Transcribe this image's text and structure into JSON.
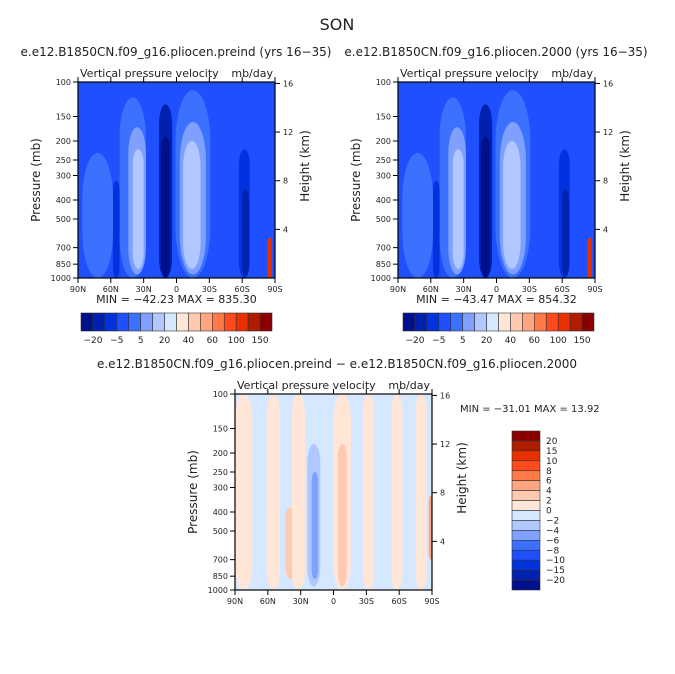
{
  "title": "SON",
  "palette": [
    "#000f8a",
    "#0021b0",
    "#0033dd",
    "#1e50ff",
    "#3c70ff",
    "#7fa0ff",
    "#b0c8ff",
    "#d6e8ff",
    "#ffe6d6",
    "#ffc8b0",
    "#ffa680",
    "#ff7a48",
    "#ff4a1e",
    "#e83000",
    "#b01c00",
    "#8a0000"
  ],
  "chart_data": [
    {
      "type": "heatmap",
      "title": "e.e12.B1850CN.f09_g16.pliocen.preind (yrs 16−35)",
      "subtitle_left": "Vertical pressure velocity",
      "subtitle_right": "mb/day",
      "ylabel": "Pressure (mb)",
      "ylabel_right": "Height (km)",
      "xticks": [
        "90N",
        "60N",
        "30N",
        "0",
        "30S",
        "60S",
        "90S"
      ],
      "yticks": [
        100,
        150,
        200,
        250,
        300,
        400,
        500,
        700,
        850,
        1000
      ],
      "yticks_right": [
        4,
        8,
        12,
        16
      ],
      "xlim": [
        90,
        -90
      ],
      "ylim": [
        1000,
        100
      ],
      "yscale": "log",
      "minmax": "MIN = −42.23   MAX = 835.30",
      "colorbar_labels": [
        "−20",
        "−5",
        "5",
        "20",
        "40",
        "60",
        "100",
        "150"
      ],
      "background_level": 3,
      "features": [
        {
          "lat": 72,
          "hw": 14,
          "ptop": 230,
          "pbot": 1000,
          "level": 4
        },
        {
          "lat": 40,
          "hw": 12,
          "ptop": 120,
          "pbot": 1000,
          "level": 4
        },
        {
          "lat": 36,
          "hw": 8,
          "ptop": 170,
          "pbot": 960,
          "level": 5
        },
        {
          "lat": 35,
          "hw": 5,
          "ptop": 220,
          "pbot": 900,
          "level": 6
        },
        {
          "lat": -15,
          "hw": 16,
          "ptop": 110,
          "pbot": 1000,
          "level": 4
        },
        {
          "lat": -15,
          "hw": 12,
          "ptop": 160,
          "pbot": 960,
          "level": 5
        },
        {
          "lat": -14,
          "hw": 8,
          "ptop": 200,
          "pbot": 900,
          "level": 6
        },
        {
          "lat": 10,
          "hw": 6,
          "ptop": 130,
          "pbot": 1000,
          "level": 1
        },
        {
          "lat": 10,
          "hw": 4,
          "ptop": 190,
          "pbot": 990,
          "level": 0
        },
        {
          "lat": 55,
          "hw": 3,
          "ptop": 320,
          "pbot": 1000,
          "level": 2
        },
        {
          "lat": -62,
          "hw": 5,
          "ptop": 220,
          "pbot": 1000,
          "level": 2
        },
        {
          "lat": -63,
          "hw": 3,
          "ptop": 350,
          "pbot": 980,
          "level": 1
        },
        {
          "lat": -85,
          "hw": 2,
          "ptop": 620,
          "pbot": 1000,
          "level": 13
        }
      ]
    },
    {
      "type": "heatmap",
      "title": "e.e12.B1850CN.f09_g16.pliocen.2000 (yrs 16−35)",
      "subtitle_left": "Vertical pressure velocity",
      "subtitle_right": "mb/day",
      "ylabel": "Pressure (mb)",
      "ylabel_right": "Height (km)",
      "xticks": [
        "90N",
        "60N",
        "30N",
        "0",
        "30S",
        "60S",
        "90S"
      ],
      "yticks": [
        100,
        150,
        200,
        250,
        300,
        400,
        500,
        700,
        850,
        1000
      ],
      "yticks_right": [
        4,
        8,
        12,
        16
      ],
      "xlim": [
        90,
        -90
      ],
      "ylim": [
        1000,
        100
      ],
      "yscale": "log",
      "minmax": "MIN = −43.47   MAX = 854.32",
      "colorbar_labels": [
        "−20",
        "−5",
        "5",
        "20",
        "40",
        "60",
        "100",
        "150"
      ],
      "background_level": 3,
      "features": [
        {
          "lat": 72,
          "hw": 14,
          "ptop": 230,
          "pbot": 1000,
          "level": 4
        },
        {
          "lat": 40,
          "hw": 12,
          "ptop": 120,
          "pbot": 1000,
          "level": 4
        },
        {
          "lat": 36,
          "hw": 8,
          "ptop": 170,
          "pbot": 960,
          "level": 5
        },
        {
          "lat": 35,
          "hw": 5,
          "ptop": 220,
          "pbot": 900,
          "level": 6
        },
        {
          "lat": -15,
          "hw": 16,
          "ptop": 110,
          "pbot": 1000,
          "level": 4
        },
        {
          "lat": -15,
          "hw": 12,
          "ptop": 160,
          "pbot": 960,
          "level": 5
        },
        {
          "lat": -14,
          "hw": 8,
          "ptop": 200,
          "pbot": 900,
          "level": 6
        },
        {
          "lat": 10,
          "hw": 6,
          "ptop": 130,
          "pbot": 1000,
          "level": 1
        },
        {
          "lat": 10,
          "hw": 4,
          "ptop": 190,
          "pbot": 990,
          "level": 0
        },
        {
          "lat": 55,
          "hw": 3,
          "ptop": 320,
          "pbot": 1000,
          "level": 2
        },
        {
          "lat": -62,
          "hw": 5,
          "ptop": 220,
          "pbot": 1000,
          "level": 2
        },
        {
          "lat": -63,
          "hw": 3,
          "ptop": 350,
          "pbot": 980,
          "level": 1
        },
        {
          "lat": -85,
          "hw": 2,
          "ptop": 620,
          "pbot": 1000,
          "level": 13
        }
      ]
    },
    {
      "type": "heatmap",
      "title": "e.e12.B1850CN.f09_g16.pliocen.preind − e.e12.B1850CN.f09_g16.pliocen.2000",
      "subtitle_left": "Vertical pressure velocity",
      "subtitle_right": "mb/day",
      "ylabel": "Pressure (mb)",
      "ylabel_right": "Height (km)",
      "xticks": [
        "90N",
        "60N",
        "30N",
        "0",
        "30S",
        "60S",
        "90S"
      ],
      "yticks": [
        100,
        150,
        200,
        250,
        300,
        400,
        500,
        700,
        850,
        1000
      ],
      "yticks_right": [
        4,
        8,
        12,
        16
      ],
      "xlim": [
        90,
        -90
      ],
      "ylim": [
        1000,
        100
      ],
      "yscale": "log",
      "minmax": "MIN = −31.01   MAX =  13.92",
      "colorbar_labels": [
        "20",
        "15",
        "10",
        "8",
        "6",
        "4",
        "2",
        "0",
        "−2",
        "−4",
        "−6",
        "−8",
        "−10",
        "−15",
        "−20"
      ],
      "background_level": 7,
      "features": [
        {
          "lat": 82,
          "hw": 8,
          "ptop": 100,
          "pbot": 1000,
          "level": 8
        },
        {
          "lat": 55,
          "hw": 6,
          "ptop": 100,
          "pbot": 1000,
          "level": 8
        },
        {
          "lat": 40,
          "hw": 4,
          "ptop": 380,
          "pbot": 880,
          "level": 9
        },
        {
          "lat": 32,
          "hw": 6,
          "ptop": 100,
          "pbot": 1000,
          "level": 8
        },
        {
          "lat": 18,
          "hw": 6,
          "ptop": 180,
          "pbot": 960,
          "level": 6
        },
        {
          "lat": 17,
          "hw": 3,
          "ptop": 250,
          "pbot": 880,
          "level": 5
        },
        {
          "lat": -8,
          "hw": 8,
          "ptop": 100,
          "pbot": 1000,
          "level": 8
        },
        {
          "lat": -8,
          "hw": 4,
          "ptop": 180,
          "pbot": 960,
          "level": 9
        },
        {
          "lat": -32,
          "hw": 5,
          "ptop": 100,
          "pbot": 1000,
          "level": 8
        },
        {
          "lat": -58,
          "hw": 5,
          "ptop": 100,
          "pbot": 1000,
          "level": 8
        },
        {
          "lat": -80,
          "hw": 5,
          "ptop": 100,
          "pbot": 1000,
          "level": 8
        },
        {
          "lat": -89,
          "hw": 2,
          "ptop": 330,
          "pbot": 700,
          "level": 10
        }
      ]
    }
  ]
}
